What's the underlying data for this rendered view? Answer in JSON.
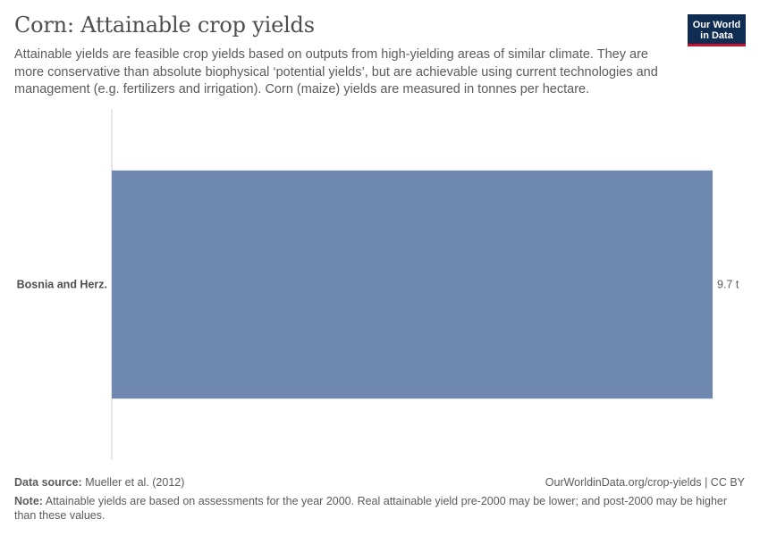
{
  "header": {
    "title": "Corn: Attainable crop yields",
    "subtitle": "Attainable yields are feasible crop yields based on outputs from high-yielding areas of similar climate. They are more conservative than absolute biophysical ‘potential yields’, but are achievable using current technologies and management (e.g. fertilizers and irrigation). Corn (maize) yields are measured in tonnes per hectare."
  },
  "logo": {
    "line1": "Our World",
    "line2": "in Data"
  },
  "chart_data": {
    "type": "bar",
    "orientation": "horizontal",
    "categories": [
      "Bosnia and Herz."
    ],
    "values": [
      9.7
    ],
    "value_labels": [
      "9.7 t"
    ],
    "unit": "t",
    "xlim": [
      0,
      9.7
    ],
    "grid": false,
    "bar_color": "#6f88b0"
  },
  "footer": {
    "source_label": "Data source:",
    "source_text": "Mueller et al. (2012)",
    "url_text": "OurWorldinData.org/crop-yields | CC BY",
    "note_label": "Note:",
    "note_text": "Attainable yields are based on assessments for the year 2000. Real attainable yield pre-2000 may be lower; and post-2000 may be higher than these values."
  }
}
